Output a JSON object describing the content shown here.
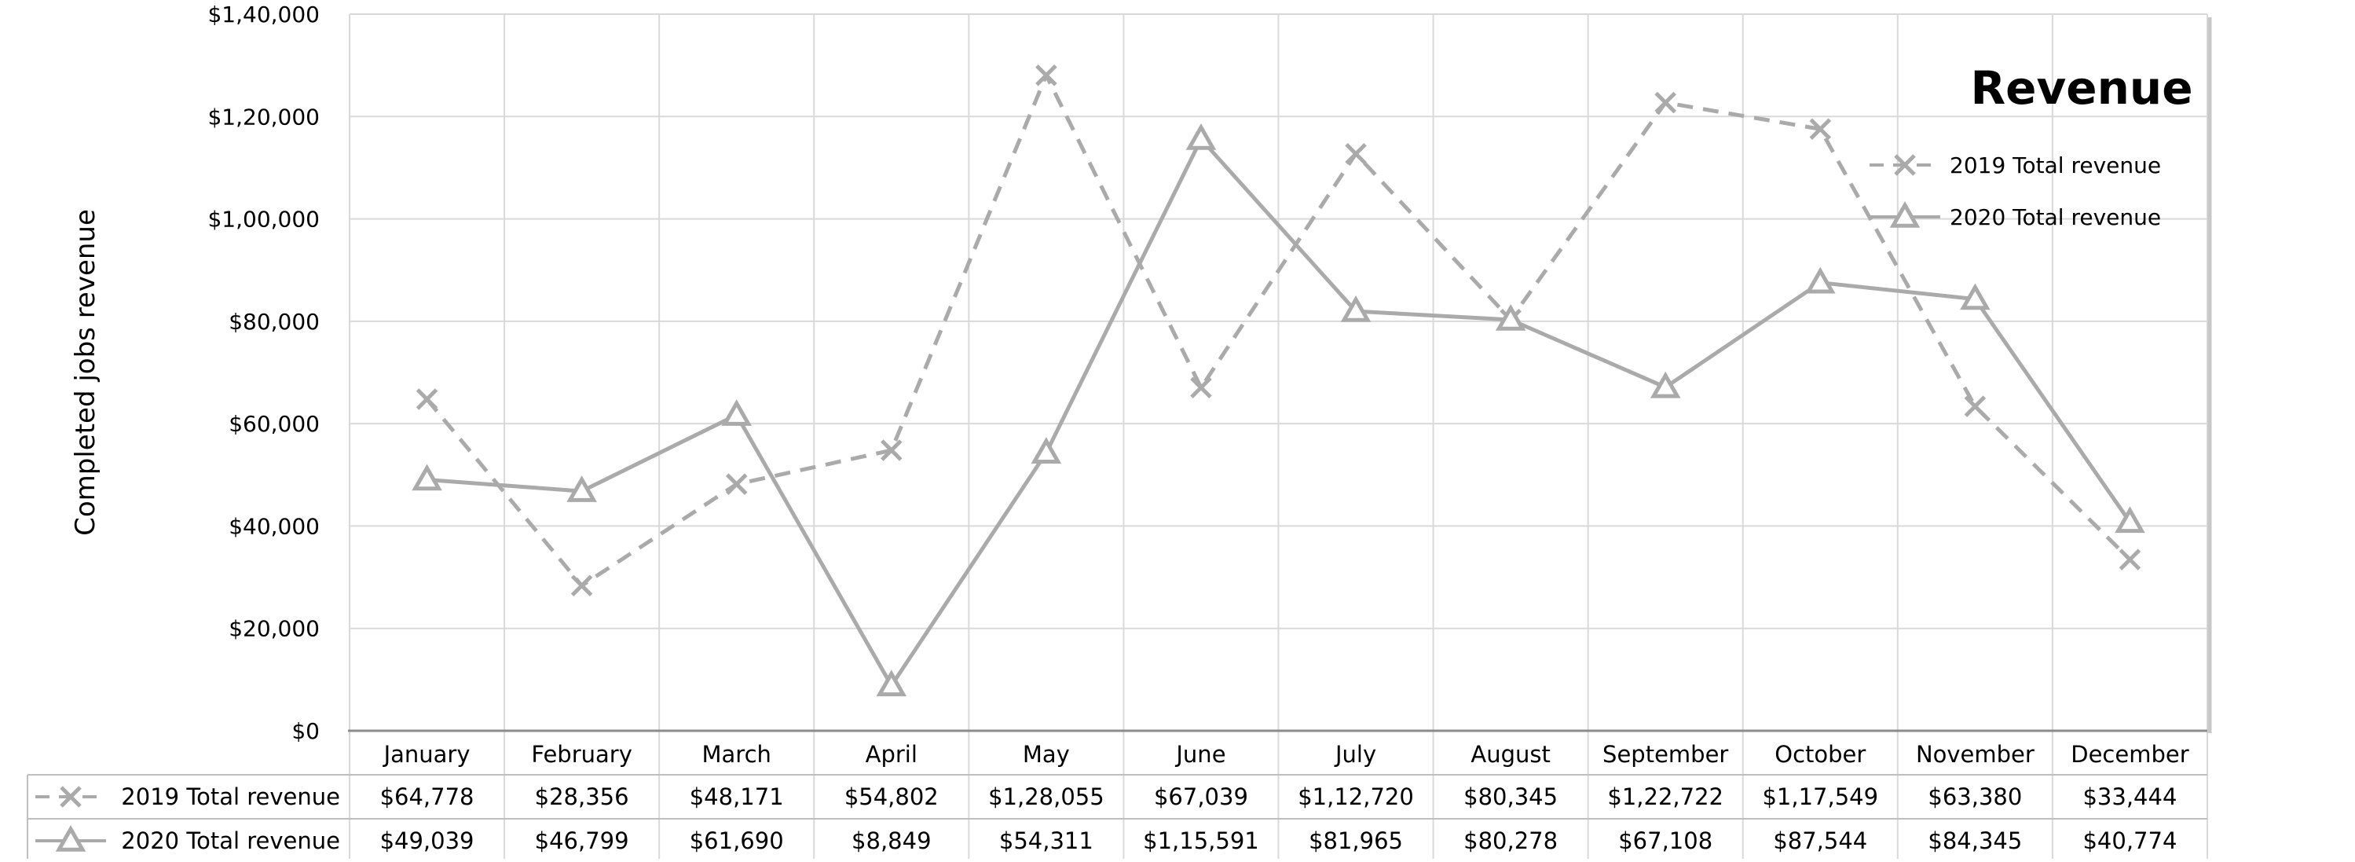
{
  "chart_data": {
    "type": "line",
    "title": "Revenue",
    "ylabel": "Completed jobs revenue",
    "xlabel": "",
    "ylim": [
      0,
      140000
    ],
    "y_ticks": [
      0,
      20000,
      40000,
      60000,
      80000,
      100000,
      120000,
      140000
    ],
    "y_tick_labels": [
      "$0",
      "$20,000",
      "$40,000",
      "$60,000",
      "$80,000",
      "$1,00,000",
      "$1,20,000",
      "$1,40,000"
    ],
    "categories": [
      "January",
      "February",
      "March",
      "April",
      "May",
      "June",
      "July",
      "August",
      "September",
      "October",
      "November",
      "December"
    ],
    "grid": true,
    "legend_position": "top-right",
    "data_table": true,
    "series": [
      {
        "name": "2019 Total revenue",
        "values": [
          64778,
          28356,
          48171,
          54802,
          128055,
          67039,
          112720,
          80345,
          122722,
          117549,
          63380,
          33444
        ],
        "labels": [
          "$64,778",
          "$28,356",
          "$48,171",
          "$54,802",
          "$1,28,055",
          "$67,039",
          "$1,12,720",
          "$80,345",
          "$1,22,722",
          "$1,17,549",
          "$63,380",
          "$33,444"
        ],
        "line_style": "dashed",
        "marker": "x",
        "color": "#aaaaaa"
      },
      {
        "name": "2020 Total revenue",
        "values": [
          49039,
          46799,
          61690,
          8849,
          54311,
          115591,
          81965,
          80278,
          67108,
          87544,
          84345,
          40774
        ],
        "labels": [
          "$49,039",
          "$46,799",
          "$61,690",
          "$8,849",
          "$54,311",
          "$1,15,591",
          "$81,965",
          "$80,278",
          "$67,108",
          "$87,544",
          "$84,345",
          "$40,774"
        ],
        "line_style": "solid",
        "marker": "triangle",
        "color": "#aaaaaa"
      }
    ]
  }
}
